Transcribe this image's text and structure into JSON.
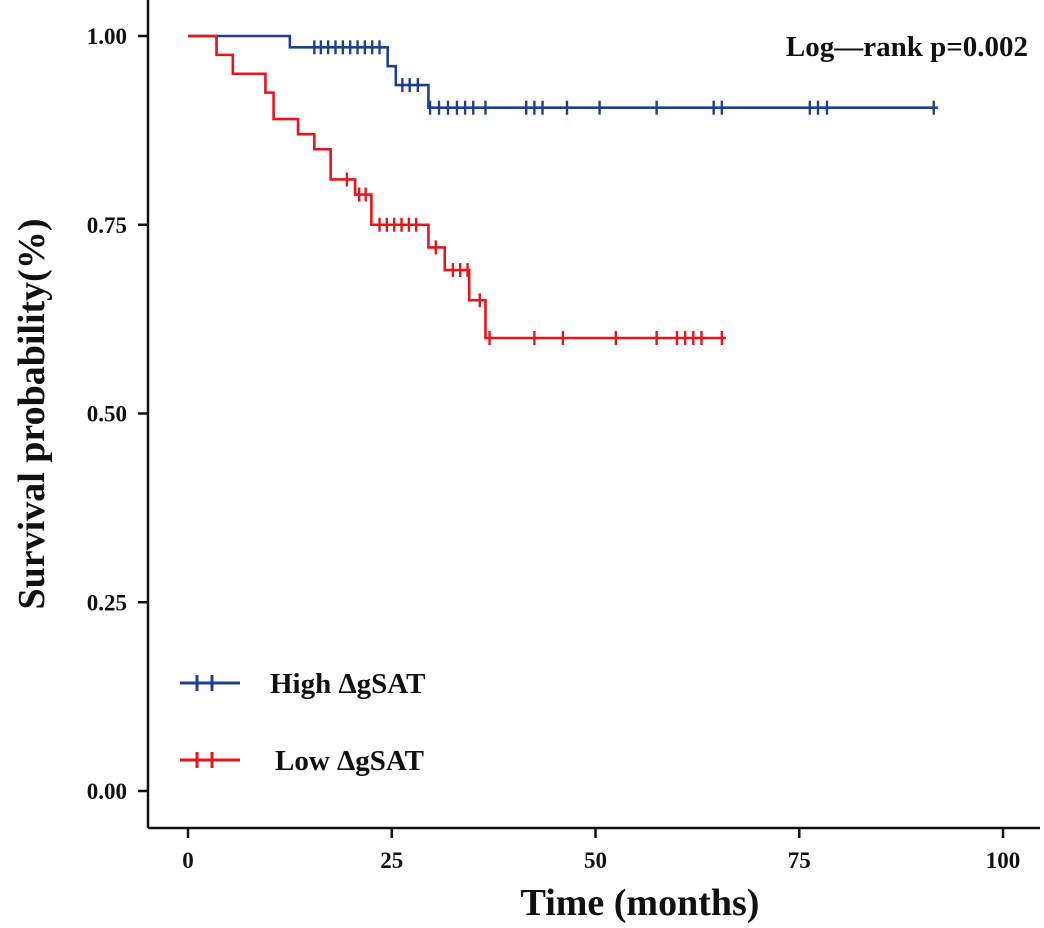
{
  "chart_data": {
    "type": "line",
    "subtype": "kaplan-meier",
    "title": "",
    "xlabel": "Time (months)",
    "ylabel": "Survival probability(%)",
    "xlim": [
      0,
      100
    ],
    "ylim": [
      0,
      1
    ],
    "x_ticks": [
      0,
      25,
      50,
      75,
      100
    ],
    "x_tick_labels": [
      "0",
      "25",
      "50",
      "75",
      "100"
    ],
    "y_ticks": [
      0,
      0.25,
      0.5,
      0.75,
      1.0
    ],
    "y_tick_labels": [
      "0.00",
      "0.25",
      "0.50",
      "0.75",
      "1.00"
    ],
    "annotation": "Log—rank  p=0.002",
    "legend_position": "bottom-left",
    "series": [
      {
        "name": "High ΔgSAT",
        "color": "#1f3f8f",
        "steps": [
          [
            0,
            1.0
          ],
          [
            12.5,
            0.985
          ],
          [
            24.5,
            0.96
          ],
          [
            25.5,
            0.935
          ],
          [
            29.5,
            0.905
          ],
          [
            92,
            0.905
          ]
        ],
        "censor_times": [
          15.5,
          16.3,
          17.2,
          18.1,
          19.0,
          19.9,
          20.8,
          21.7,
          22.6,
          23.5,
          26.3,
          27.2,
          28.2,
          29.7,
          30.8,
          31.9,
          33.0,
          34.0,
          35.0,
          36.5,
          41.5,
          42.5,
          43.5,
          46.5,
          50.5,
          57.5,
          64.5,
          65.5,
          76.3,
          77.3,
          78.4,
          91.5
        ]
      },
      {
        "name": "Low ΔgSAT",
        "color": "#e8141b",
        "steps": [
          [
            0,
            1.0
          ],
          [
            3.5,
            0.975
          ],
          [
            5.5,
            0.95
          ],
          [
            9.5,
            0.925
          ],
          [
            10.5,
            0.89
          ],
          [
            13.5,
            0.87
          ],
          [
            15.5,
            0.85
          ],
          [
            17.5,
            0.81
          ],
          [
            20.5,
            0.79
          ],
          [
            22.5,
            0.75
          ],
          [
            29.5,
            0.72
          ],
          [
            31.5,
            0.69
          ],
          [
            34.5,
            0.65
          ],
          [
            36.5,
            0.6
          ],
          [
            66,
            0.6
          ]
        ],
        "censor_times": [
          19.5,
          21.0,
          21.8,
          23.5,
          24.4,
          25.3,
          26.2,
          27.1,
          28.0,
          30.4,
          32.5,
          33.4,
          34.3,
          35.8,
          37.0,
          42.5,
          46.0,
          52.5,
          57.5,
          60.0,
          61.0,
          62.0,
          63.0,
          65.5
        ]
      }
    ]
  }
}
